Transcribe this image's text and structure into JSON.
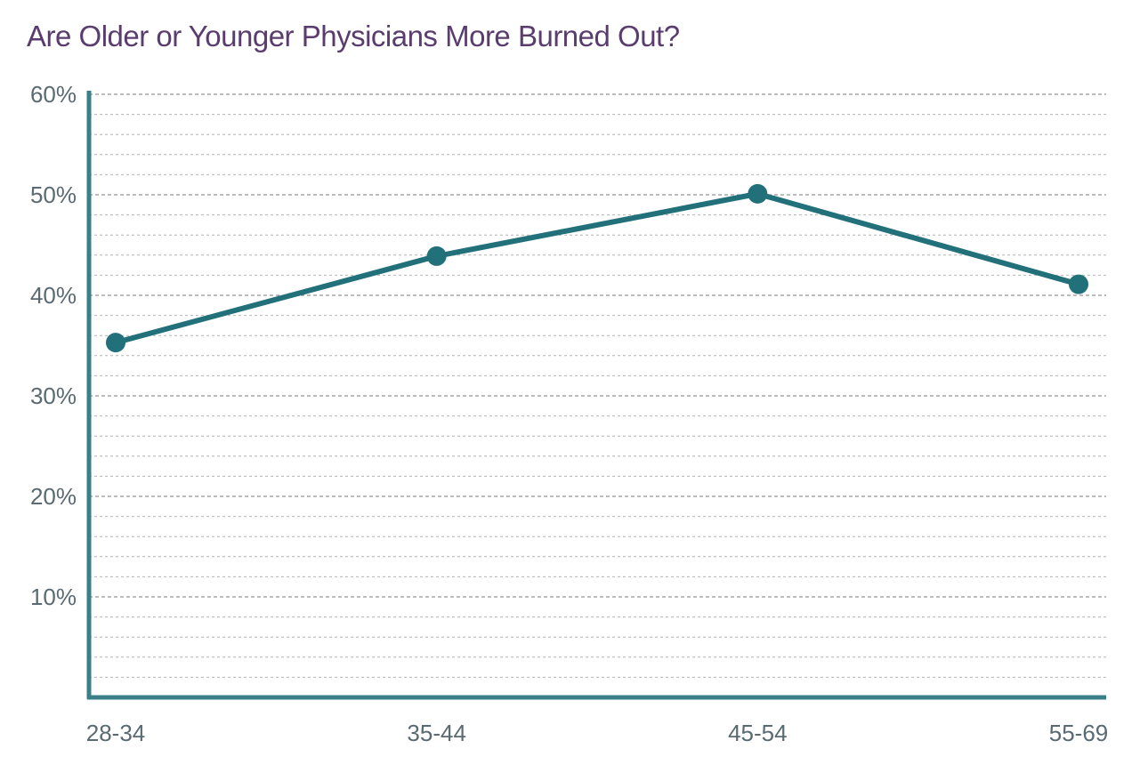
{
  "chart_data": {
    "type": "line",
    "title": "Are Older or Younger Physicians More Burned Out?",
    "categories": [
      "28-34",
      "35-44",
      "45-54",
      "55-69"
    ],
    "series": [
      {
        "values": [
          35.3,
          43.9,
          50.1,
          41.1
        ]
      }
    ],
    "ylim": [
      0,
      60
    ],
    "yticks": [
      0,
      10,
      20,
      30,
      40,
      50,
      60
    ],
    "ytick_labels": [
      "",
      "10%",
      "20%",
      "30%",
      "40%",
      "50%",
      "60%"
    ],
    "xlabel": "",
    "ylabel": "",
    "grid": true,
    "legend": "none"
  },
  "colors": {
    "title": "#5a3d6e",
    "line": "#22707a",
    "axis": "#3b8088",
    "grid_major": "#7a7a7a",
    "grid_minor": "#b4b4b4",
    "tick_label": "#5a6a72"
  }
}
